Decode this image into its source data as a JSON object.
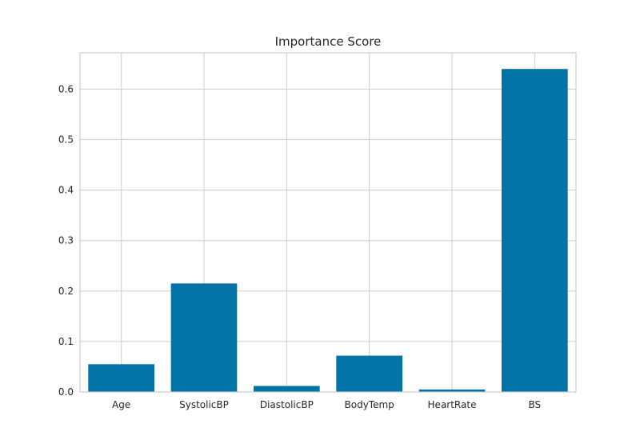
{
  "chart_data": {
    "type": "bar",
    "title": "Importance Score",
    "categories": [
      "Age",
      "SystolicBP",
      "DiastolicBP",
      "BodyTemp",
      "HeartRate",
      "BS"
    ],
    "values": [
      0.055,
      0.215,
      0.012,
      0.072,
      0.005,
      0.64
    ],
    "ylim": [
      0,
      0.672
    ],
    "yticks": [
      0.0,
      0.1,
      0.2,
      0.3,
      0.4,
      0.5,
      0.6
    ],
    "ytick_labels": [
      "0.0",
      "0.1",
      "0.2",
      "0.3",
      "0.4",
      "0.5",
      "0.6"
    ],
    "bar_color": "#0173a6",
    "grid": true
  }
}
